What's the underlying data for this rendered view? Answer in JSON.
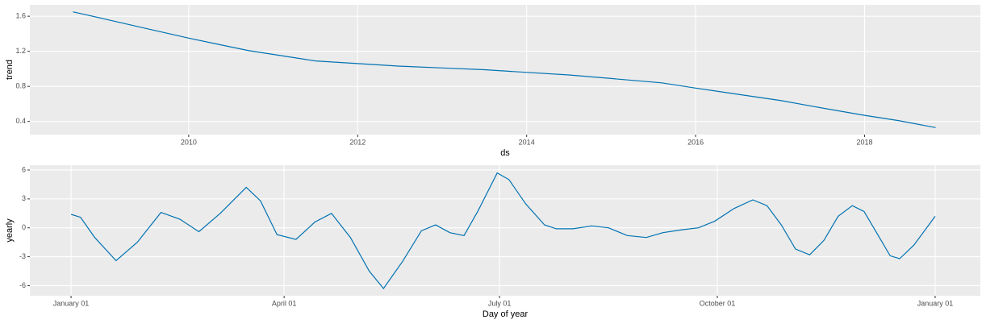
{
  "chart_data": [
    {
      "type": "line",
      "y_label": "trend",
      "x_label": "ds",
      "x": [
        2008.63,
        2009.0,
        2009.5,
        2010.0,
        2010.35,
        2010.7,
        2011.1,
        2011.5,
        2012.0,
        2012.5,
        2013.0,
        2013.5,
        2014.0,
        2014.5,
        2015.0,
        2015.6,
        2016.0,
        2016.5,
        2017.0,
        2017.4,
        2018.0,
        2018.4,
        2018.84
      ],
      "series": [
        {
          "name": "trend",
          "color": "#0072B2",
          "values": [
            1.65,
            1.57,
            1.46,
            1.35,
            1.28,
            1.21,
            1.15,
            1.09,
            1.06,
            1.03,
            1.01,
            0.99,
            0.96,
            0.93,
            0.89,
            0.84,
            0.78,
            0.71,
            0.64,
            0.57,
            0.47,
            0.41,
            0.33
          ]
        }
      ],
      "xlim": [
        2008.12,
        2019.37
      ],
      "xticks": [
        2010,
        2012,
        2014,
        2016,
        2018
      ],
      "ylim": [
        0.25,
        1.73
      ],
      "yticks": [
        0.4,
        0.8,
        1.2,
        1.6
      ],
      "grid": true
    },
    {
      "type": "line",
      "y_label": "yearly",
      "x_label": "Day of year",
      "x": [
        0,
        4,
        10,
        19,
        28,
        38,
        46,
        54,
        63,
        74,
        80,
        87,
        95,
        103,
        110,
        118,
        126,
        132,
        140,
        148,
        154,
        160,
        166,
        172,
        180,
        185,
        192,
        200,
        205,
        212,
        220,
        227,
        235,
        243,
        250,
        258,
        265,
        272,
        280,
        288,
        294,
        300,
        306,
        312,
        318,
        324,
        330,
        335,
        341,
        346,
        350,
        356,
        365
      ],
      "series": [
        {
          "name": "yearly",
          "color": "#0072B2",
          "values": [
            1.4,
            1.1,
            -1.0,
            -3.4,
            -1.5,
            1.6,
            0.9,
            -0.4,
            1.5,
            4.2,
            2.8,
            -0.7,
            -1.2,
            0.6,
            1.5,
            -1.0,
            -4.5,
            -6.3,
            -3.5,
            -0.3,
            0.3,
            -0.5,
            -0.8,
            1.8,
            5.7,
            5.0,
            2.5,
            0.3,
            -0.1,
            -0.1,
            0.2,
            0.0,
            -0.8,
            -1.0,
            -0.5,
            -0.2,
            0.0,
            0.7,
            2.0,
            2.9,
            2.3,
            0.3,
            -2.2,
            -2.8,
            -1.3,
            1.2,
            2.3,
            1.7,
            -0.8,
            -2.9,
            -3.2,
            -1.8,
            1.2
          ]
        }
      ],
      "xlim": [
        -17.4,
        384.1
      ],
      "xticks": [
        {
          "value": 0,
          "label": "January 01"
        },
        {
          "value": 90,
          "label": "April 01"
        },
        {
          "value": 181,
          "label": "July 01"
        },
        {
          "value": 273,
          "label": "October 01"
        },
        {
          "value": 365,
          "label": "January 01"
        }
      ],
      "ylim": [
        -7.05,
        6.5
      ],
      "yticks": [
        -6,
        -3,
        0,
        3,
        6
      ],
      "grid": true
    }
  ]
}
